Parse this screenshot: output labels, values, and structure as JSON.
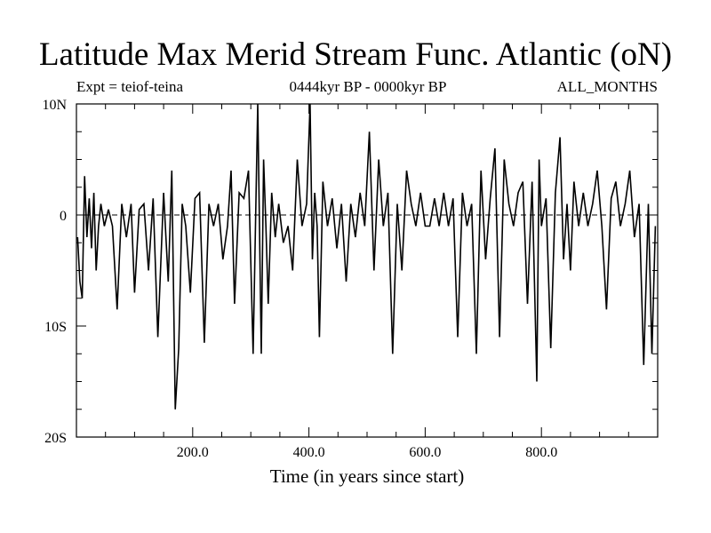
{
  "title": "Latitude Max Merid Stream Func. Atlantic (oN)",
  "subtitle_left": "Expt = teiof-teina",
  "subtitle_center": "0444kyr BP - 0000kyr BP",
  "subtitle_right": "ALL_MONTHS",
  "colors": {
    "background": "#ffffff",
    "line": "#000000"
  },
  "chart_data": {
    "type": "line",
    "title": "Latitude Max Merid Stream Func. Atlantic (oN)",
    "xlabel": "Time (in years since start)",
    "ylabel": "",
    "xlim": [
      0,
      1000
    ],
    "ylim": [
      -20,
      10
    ],
    "x_ticks": [
      {
        "value": 200,
        "label": "200.0"
      },
      {
        "value": 400,
        "label": "400.0"
      },
      {
        "value": 600,
        "label": "600.0"
      },
      {
        "value": 800,
        "label": "800.0"
      }
    ],
    "y_ticks": [
      {
        "value": 10,
        "label": "10N"
      },
      {
        "value": 0,
        "label": "0"
      },
      {
        "value": -10,
        "label": "10S"
      },
      {
        "value": -20,
        "label": "20S"
      }
    ],
    "reference_line": 0,
    "series": [
      {
        "name": "teiof-teina",
        "x": [
          2,
          6,
          10,
          14,
          18,
          22,
          26,
          30,
          34,
          38,
          42,
          48,
          55,
          62,
          70,
          78,
          86,
          94,
          100,
          108,
          116,
          124,
          132,
          140,
          150,
          158,
          164,
          170,
          176,
          182,
          188,
          196,
          204,
          212,
          220,
          228,
          236,
          244,
          252,
          260,
          266,
          272,
          280,
          288,
          296,
          304,
          312,
          318,
          322,
          326,
          330,
          336,
          342,
          348,
          356,
          364,
          372,
          380,
          388,
          396,
          402,
          406,
          410,
          414,
          418,
          424,
          432,
          440,
          448,
          456,
          464,
          472,
          480,
          488,
          496,
          504,
          512,
          520,
          528,
          536,
          544,
          552,
          560,
          568,
          576,
          584,
          592,
          600,
          608,
          616,
          624,
          632,
          640,
          648,
          656,
          664,
          672,
          680,
          688,
          696,
          704,
          712,
          720,
          728,
          736,
          744,
          752,
          760,
          768,
          776,
          784,
          792,
          796,
          800,
          808,
          816,
          824,
          832,
          838,
          844,
          850,
          856,
          864,
          872,
          880,
          888,
          896,
          904,
          912,
          920,
          928,
          936,
          944,
          952,
          960,
          968,
          976,
          984,
          990,
          996
        ],
        "values": [
          -2,
          -6,
          -7.5,
          3.5,
          -2,
          1.5,
          -3,
          2,
          -5,
          -1,
          1,
          -1,
          0.5,
          -1,
          -8.5,
          1,
          -2,
          1,
          -7,
          0.5,
          1,
          -5,
          1.5,
          -11,
          2,
          -6,
          4,
          -17.5,
          -12,
          1,
          -1,
          -7,
          1.5,
          2,
          -11.5,
          1,
          -1,
          1,
          -4,
          -1,
          4,
          -8,
          2,
          1.5,
          4,
          -12.5,
          10,
          -12.5,
          5,
          -1,
          -8,
          2,
          -2,
          1,
          -2.5,
          -1,
          -5,
          5,
          -1,
          1,
          10,
          -4,
          2,
          -1,
          -11,
          3,
          -1,
          1.5,
          -3,
          1,
          -6,
          1,
          -2,
          2,
          -1,
          7.5,
          -5,
          5,
          -1,
          2,
          -12.5,
          1,
          -5,
          4,
          1,
          -1,
          2,
          -1,
          -1,
          1.5,
          -1,
          2,
          -1,
          1.5,
          -11,
          2,
          -1,
          1,
          -12.5,
          4,
          -4,
          1.5,
          6,
          -11,
          5,
          1,
          -1,
          2,
          3,
          -8,
          3,
          -15,
          5,
          -1,
          1.5,
          -12,
          2,
          7,
          -4,
          1,
          -5,
          3,
          -1,
          2,
          -1,
          1,
          4,
          -1,
          -8.5,
          1.5,
          3,
          -1,
          1,
          4,
          -2,
          1,
          -13.5,
          1,
          -12.5,
          -1
        ]
      }
    ]
  }
}
